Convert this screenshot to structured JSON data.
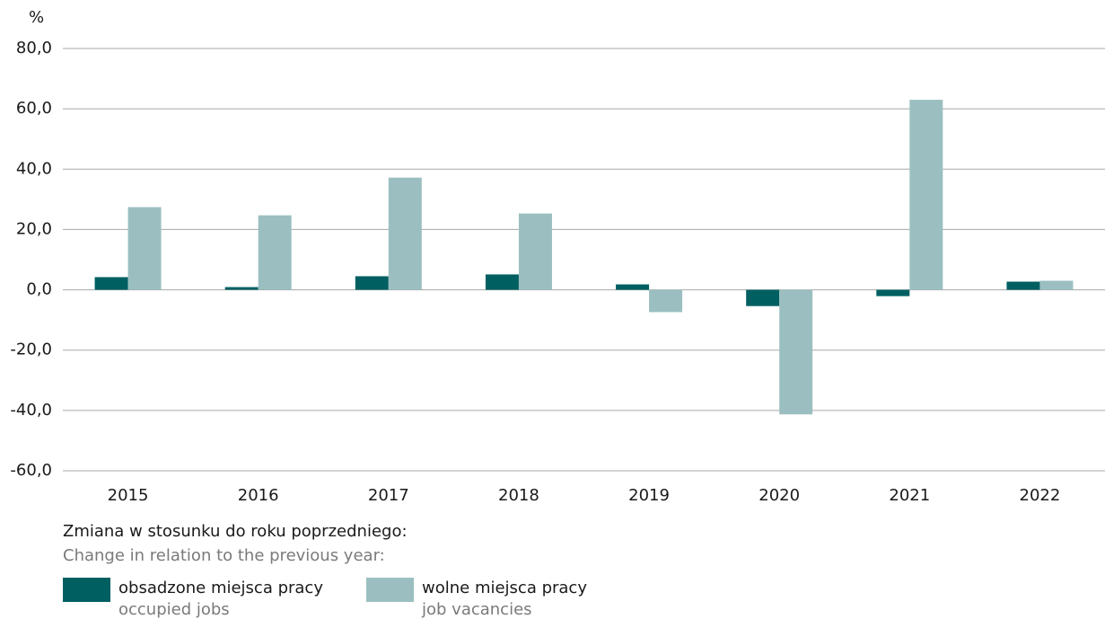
{
  "chart_data": {
    "type": "bar",
    "unit_label": "%",
    "legend_title": "Zmiana w stosunku do roku poprzedniego:",
    "legend_title_en": "Change in relation to the previous year:",
    "categories": [
      "2015",
      "2016",
      "2017",
      "2018",
      "2019",
      "2020",
      "2021",
      "2022"
    ],
    "series": [
      {
        "name": "obsadzone miejsca pracy",
        "name_en": "occupied jobs",
        "color": "#005f61",
        "values": [
          4.2,
          0.9,
          4.5,
          5.1,
          1.8,
          -5.4,
          -2.1,
          2.7
        ]
      },
      {
        "name": "wolne miejsca pracy",
        "name_en": "job vacancies",
        "color": "#9bbfc1",
        "values": [
          27.4,
          24.7,
          37.2,
          25.3,
          -7.4,
          -41.3,
          63.0,
          3.0
        ]
      }
    ],
    "ylim": [
      -60,
      80
    ],
    "yticks": [
      {
        "value": -60,
        "label": "-60,0"
      },
      {
        "value": -40,
        "label": "-40,0"
      },
      {
        "value": -20,
        "label": "-20,0"
      },
      {
        "value": 0,
        "label": "0,0"
      },
      {
        "value": 20,
        "label": "20,0"
      },
      {
        "value": 40,
        "label": "40,0"
      },
      {
        "value": 60,
        "label": "60,0"
      },
      {
        "value": 80,
        "label": "80,0"
      }
    ],
    "grid": true
  }
}
